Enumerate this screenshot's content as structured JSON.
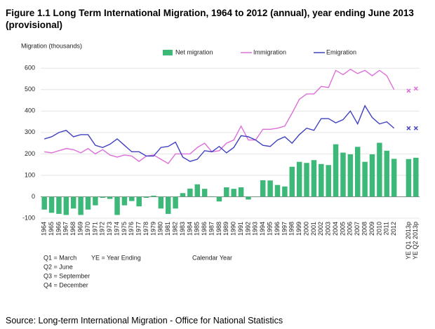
{
  "chart_data": {
    "type": "combo",
    "title": "Figure 1.1 Long Term International Migration, 1964 to 2012 (annual), year ending June 2013 (provisional)",
    "y_label": "Migration (thousands)",
    "x_label": "Calendar Year",
    "source": "Source: Long-term International Migration - Office for National Statistics",
    "notes": [
      "Q1 = March",
      "Q2 = June",
      "Q3 = September",
      "Q4 = December"
    ],
    "ye_note": "YE = Year Ending",
    "categories": [
      "1964",
      "1965",
      "1966",
      "1967",
      "1968",
      "1969",
      "1970",
      "1971",
      "1972",
      "1973",
      "1974",
      "1975",
      "1976",
      "1977",
      "1978",
      "1979",
      "1980",
      "1981",
      "1982",
      "1983",
      "1984",
      "1985",
      "1986",
      "1987",
      "1988",
      "1989",
      "1990",
      "1991",
      "1992",
      "1993",
      "1994",
      "1995",
      "1996",
      "1997",
      "1998",
      "1999",
      "2000",
      "2001",
      "2002",
      "2003",
      "2004",
      "2005",
      "2006",
      "2007",
      "2008",
      "2009",
      "2010",
      "2011",
      "2012"
    ],
    "provisional_categories": [
      "YE Q1 2013p",
      "YE Q2 2013p"
    ],
    "series": [
      {
        "name": "Net migration",
        "type": "bar",
        "color": "#3cb878",
        "values": [
          -60,
          -75,
          -80,
          -85,
          -55,
          -85,
          -60,
          -40,
          -5,
          -10,
          -85,
          -40,
          -20,
          -45,
          -5,
          5,
          -55,
          -80,
          -55,
          17,
          38,
          58,
          37,
          2,
          -22,
          44,
          37,
          44,
          -13,
          -1,
          77,
          76,
          55,
          48,
          140,
          163,
          158,
          171,
          153,
          148,
          245,
          206,
          198,
          233,
          163,
          198,
          252,
          215,
          177
        ],
        "provisional_values": [
          176,
          182
        ]
      },
      {
        "name": "Immigration",
        "type": "line",
        "color": "#dd6fd8",
        "values": [
          210,
          205,
          215,
          225,
          220,
          205,
          225,
          200,
          220,
          195,
          185,
          195,
          190,
          165,
          190,
          195,
          175,
          155,
          200,
          200,
          200,
          230,
          250,
          210,
          215,
          250,
          265,
          330,
          265,
          265,
          315,
          315,
          320,
          330,
          390,
          455,
          480,
          480,
          515,
          510,
          590,
          570,
          595,
          575,
          590,
          565,
          590,
          565,
          500
        ],
        "provisional_values": [
          495,
          505
        ]
      },
      {
        "name": "Emigration",
        "type": "line",
        "color": "#4040c0",
        "values": [
          270,
          280,
          300,
          310,
          280,
          290,
          290,
          240,
          230,
          245,
          270,
          240,
          210,
          210,
          190,
          190,
          230,
          235,
          255,
          185,
          165,
          175,
          215,
          210,
          235,
          205,
          230,
          285,
          280,
          265,
          240,
          235,
          265,
          280,
          250,
          290,
          320,
          310,
          365,
          365,
          345,
          360,
          400,
          340,
          425,
          370,
          340,
          350,
          320
        ],
        "provisional_values": [
          320,
          320
        ]
      }
    ],
    "ylim": [
      -100,
      650
    ],
    "yticks": [
      -100,
      0,
      100,
      200,
      300,
      400,
      500,
      600
    ],
    "grid": true
  }
}
